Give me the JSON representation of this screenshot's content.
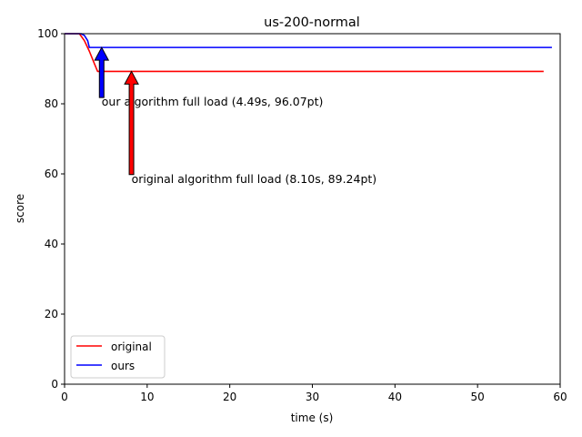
{
  "chart_data": {
    "type": "line",
    "title": "us-200-normal",
    "xlabel": "time (s)",
    "ylabel": "score",
    "xlim": [
      0,
      60
    ],
    "ylim": [
      0,
      100
    ],
    "xticks": [
      0,
      10,
      20,
      30,
      40,
      50,
      60
    ],
    "yticks": [
      0,
      20,
      40,
      60,
      80,
      100
    ],
    "grid": false,
    "legend_position": "lower-left",
    "series": [
      {
        "name": "original",
        "color": "#ff0000",
        "x": [
          0,
          1.8,
          2.4,
          3.0,
          3.6,
          4.0,
          8.1,
          20,
          40,
          58
        ],
        "y": [
          100,
          100,
          98.0,
          95.0,
          91.5,
          89.24,
          89.24,
          89.24,
          89.24,
          89.24
        ]
      },
      {
        "name": "ours",
        "color": "#0000ff",
        "x": [
          0,
          2.0,
          2.4,
          2.8,
          3.0,
          4.49,
          20,
          40,
          59
        ],
        "y": [
          100,
          100,
          99.5,
          98.0,
          96.07,
          96.07,
          96.07,
          96.07,
          96.07
        ]
      }
    ],
    "annotations": [
      {
        "text": "our algorithm full load (4.49s, 96.07pt)",
        "point": [
          4.49,
          96.07
        ],
        "text_pos": [
          4.49,
          80.5
        ],
        "color": "#0000ff"
      },
      {
        "text": "original algorithm full load (8.10s, 89.24pt)",
        "point": [
          8.1,
          89.24
        ],
        "text_pos": [
          8.1,
          58.5
        ],
        "color": "#ff0000"
      }
    ]
  }
}
